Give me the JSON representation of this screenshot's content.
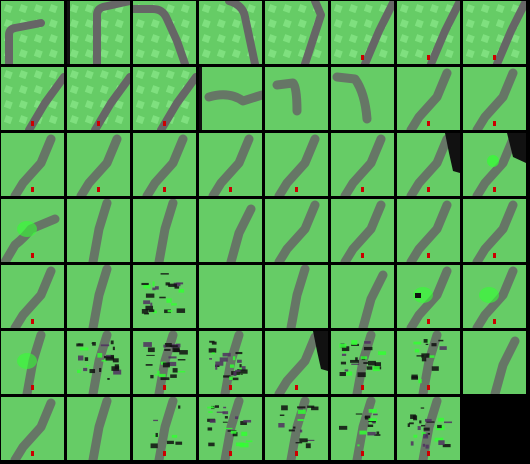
{
  "frame_grid": {
    "columns": 8,
    "rows": 7,
    "colors": {
      "grass": "#66cc66",
      "grass_light": "#7fe07f",
      "road": "#666666",
      "car": "#cc0000",
      "artifact_dark": "#111111",
      "artifact_purple": "#503060",
      "artifact_green": "#33ff33",
      "blank": "#000000"
    },
    "tiles": [
      {
        "k": "frame-1",
        "road": "curve_left",
        "patches": true,
        "artifact": "none"
      },
      {
        "k": "frame-2",
        "road": "curve_left_mid",
        "patches": true,
        "artifact": "edge_dark"
      },
      {
        "k": "frame-3",
        "road": "diag_top_left",
        "patches": true,
        "artifact": "none"
      },
      {
        "k": "frame-4",
        "road": "diag_top",
        "patches": true,
        "artifact": "none"
      },
      {
        "k": "frame-5",
        "road": "diag_top_right",
        "patches": true,
        "artifact": "none"
      },
      {
        "k": "frame-6",
        "road": "diag",
        "patches": true,
        "artifact": "none",
        "car": true
      },
      {
        "k": "frame-7",
        "road": "diag",
        "patches": true,
        "artifact": "none",
        "car": true
      },
      {
        "k": "frame-8",
        "road": "diag",
        "patches": true,
        "artifact": "none",
        "car": true
      },
      {
        "k": "frame-9",
        "road": "diag_low",
        "patches": true,
        "artifact": "none",
        "car": true
      },
      {
        "k": "frame-10",
        "road": "diag_low",
        "patches": true,
        "artifact": "none",
        "car": true
      },
      {
        "k": "frame-11",
        "road": "diag_low",
        "patches": true,
        "artifact": "none",
        "car": true
      },
      {
        "k": "frame-12",
        "road": "blur_curve",
        "patches": false,
        "artifact": "edge_dark"
      },
      {
        "k": "frame-13",
        "road": "blur_hook",
        "patches": false,
        "artifact": "none"
      },
      {
        "k": "frame-14",
        "road": "blur_hook2",
        "patches": false,
        "artifact": "none"
      },
      {
        "k": "frame-15",
        "road": "blur_diag",
        "patches": false,
        "artifact": "none",
        "car": true
      },
      {
        "k": "frame-16",
        "road": "blur_diag",
        "patches": false,
        "artifact": "none",
        "car": true
      },
      {
        "k": "frame-17",
        "road": "blur_diag",
        "patches": false,
        "artifact": "none",
        "car": true
      },
      {
        "k": "frame-18",
        "road": "blur_diag",
        "patches": false,
        "artifact": "none",
        "car": true
      },
      {
        "k": "frame-19",
        "road": "blur_diag",
        "patches": false,
        "artifact": "none",
        "car": true
      },
      {
        "k": "frame-20",
        "road": "blur_diag",
        "patches": false,
        "artifact": "none",
        "car": true
      },
      {
        "k": "frame-21",
        "road": "blur_diag",
        "patches": false,
        "artifact": "none",
        "car": true
      },
      {
        "k": "frame-22",
        "road": "blur_diag",
        "patches": false,
        "artifact": "none",
        "car": true
      },
      {
        "k": "frame-23",
        "road": "blur_diag",
        "patches": false,
        "artifact": "right_black",
        "car": true
      },
      {
        "k": "frame-24",
        "road": "blur_diag",
        "patches": false,
        "artifact": "corner_black_green",
        "car": true
      },
      {
        "k": "frame-25",
        "road": "blur_wavy",
        "patches": false,
        "artifact": "green_blob",
        "car": true
      },
      {
        "k": "frame-26",
        "road": "blur_faint",
        "patches": false,
        "artifact": "none"
      },
      {
        "k": "frame-27",
        "road": "blur_faint",
        "patches": false,
        "artifact": "none"
      },
      {
        "k": "frame-28",
        "road": "blur_faint2",
        "patches": false,
        "artifact": "none"
      },
      {
        "k": "frame-29",
        "road": "blur_diag",
        "patches": false,
        "artifact": "none"
      },
      {
        "k": "frame-30",
        "road": "blur_diag",
        "patches": false,
        "artifact": "none",
        "car": true
      },
      {
        "k": "frame-31",
        "road": "blur_diag",
        "patches": false,
        "artifact": "none",
        "car": true
      },
      {
        "k": "frame-32",
        "road": "blur_diag",
        "patches": false,
        "artifact": "none",
        "car": true
      },
      {
        "k": "frame-33",
        "road": "blur_diag",
        "patches": false,
        "artifact": "none",
        "car": true
      },
      {
        "k": "frame-34",
        "road": "blur_faint",
        "patches": false,
        "artifact": "none"
      },
      {
        "k": "frame-35",
        "road": "none",
        "patches": false,
        "artifact": "heavy_noise"
      },
      {
        "k": "frame-36",
        "road": "none",
        "patches": false,
        "artifact": "none"
      },
      {
        "k": "frame-37",
        "road": "blur_faint",
        "patches": false,
        "artifact": "none"
      },
      {
        "k": "frame-38",
        "road": "blur_faint2",
        "patches": false,
        "artifact": "none"
      },
      {
        "k": "frame-39",
        "road": "blur_diag",
        "patches": false,
        "artifact": "green_blob_dark",
        "car": true
      },
      {
        "k": "frame-40",
        "road": "blur_diag",
        "patches": false,
        "artifact": "green_blob",
        "car": true
      },
      {
        "k": "frame-41",
        "road": "blur_faint",
        "patches": false,
        "artifact": "green_blob",
        "car": true
      },
      {
        "k": "frame-42",
        "road": "blur_faint",
        "patches": false,
        "artifact": "heavy_noise"
      },
      {
        "k": "frame-43",
        "road": "blur_faint",
        "patches": false,
        "artifact": "heavy_noise",
        "car": true
      },
      {
        "k": "frame-44",
        "road": "blur_faint",
        "patches": false,
        "artifact": "heavy_noise",
        "car": true
      },
      {
        "k": "frame-45",
        "road": "blur_diag",
        "patches": false,
        "artifact": "right_black",
        "car": true
      },
      {
        "k": "frame-46",
        "road": "blur_faint",
        "patches": false,
        "artifact": "heavy_noise",
        "car": true
      },
      {
        "k": "frame-47",
        "road": "blur_faint",
        "patches": false,
        "artifact": "heavy_noise_light",
        "car": true
      },
      {
        "k": "frame-48",
        "road": "blur_faint2",
        "patches": false,
        "artifact": "none"
      },
      {
        "k": "frame-49",
        "road": "blur_diag",
        "patches": false,
        "artifact": "none",
        "car": true
      },
      {
        "k": "frame-50",
        "road": "blur_faint",
        "patches": false,
        "artifact": "none"
      },
      {
        "k": "frame-51",
        "road": "blur_faint",
        "patches": false,
        "artifact": "light_noise",
        "car": true
      },
      {
        "k": "frame-52",
        "road": "blur_faint",
        "patches": false,
        "artifact": "heavy_noise",
        "car": true
      },
      {
        "k": "frame-53",
        "road": "blur_faint",
        "patches": false,
        "artifact": "heavy_noise_light",
        "car": true
      },
      {
        "k": "frame-54",
        "road": "blur_faint",
        "patches": false,
        "artifact": "heavy_noise_light",
        "car": true
      },
      {
        "k": "frame-55",
        "road": "blur_faint",
        "patches": false,
        "artifact": "heavy_noise",
        "car": true
      },
      {
        "k": "frame-56",
        "road": "none",
        "patches": false,
        "artifact": "blank"
      }
    ]
  }
}
